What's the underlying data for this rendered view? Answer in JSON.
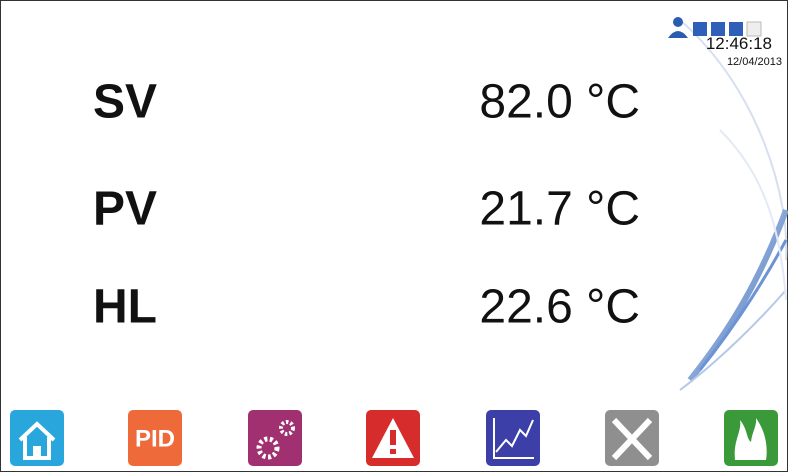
{
  "status": {
    "time": "12:46:18",
    "date": "12/04/2013"
  },
  "readings": [
    {
      "label": "SV",
      "value": "82.0 °C"
    },
    {
      "label": "PV",
      "value": "21.7 °C"
    },
    {
      "label": "HL",
      "value": "22.6 °C"
    }
  ],
  "toolbar": {
    "pid_label": "PID"
  }
}
